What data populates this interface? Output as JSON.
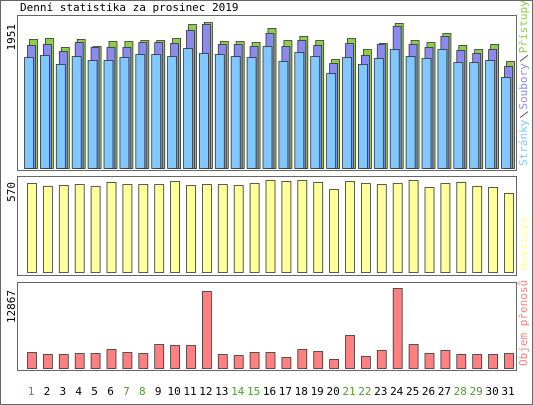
{
  "chart_data": [
    {
      "type": "bar",
      "title": "Denní statistika za prosinec 2019",
      "ylim": [
        0,
        1951
      ],
      "yticks": [
        1951
      ],
      "series": [
        {
          "name": "Přístupy",
          "color": "#8fce4a",
          "values": [
            1724,
            1737,
            1617,
            1724,
            1630,
            1697,
            1697,
            1710,
            1710,
            1737,
            1924,
            1951,
            1697,
            1697,
            1683,
            1871,
            1710,
            1764,
            1710,
            1456,
            1737,
            1590,
            1670,
            1938,
            1710,
            1683,
            1804,
            1644,
            1590,
            1657,
            1430
          ]
        },
        {
          "name": "Soubory",
          "color": "#8a8af0",
          "values": [
            1644,
            1657,
            1563,
            1683,
            1617,
            1617,
            1617,
            1683,
            1683,
            1670,
            1844,
            1924,
            1657,
            1657,
            1630,
            1804,
            1630,
            1710,
            1644,
            1403,
            1670,
            1510,
            1657,
            1898,
            1657,
            1617,
            1764,
            1577,
            1537,
            1590,
            1363
          ]
        },
        {
          "name": "Stránky",
          "color": "#80c8ff",
          "values": [
            1483,
            1510,
            1390,
            1496,
            1443,
            1443,
            1483,
            1523,
            1523,
            1496,
            1603,
            1536,
            1523,
            1496,
            1483,
            1630,
            1430,
            1550,
            1496,
            1269,
            1483,
            1390,
            1470,
            1590,
            1496,
            1470,
            1590,
            1416,
            1416,
            1443,
            1216
          ]
        }
      ]
    },
    {
      "type": "bar",
      "ylim": [
        0,
        570
      ],
      "yticks": [
        570
      ],
      "series": [
        {
          "name": "Návštěvy",
          "color": "#ffff99",
          "values": [
            551,
            533,
            539,
            545,
            533,
            558,
            545,
            545,
            545,
            564,
            539,
            545,
            545,
            539,
            551,
            570,
            564,
            570,
            558,
            514,
            564,
            551,
            545,
            551,
            570,
            527,
            551,
            558,
            533,
            527,
            490
          ]
        }
      ]
    },
    {
      "type": "bar",
      "ylim": [
        0,
        12867
      ],
      "yticks": [
        12867
      ],
      "categories": [
        "1",
        "2",
        "3",
        "4",
        "5",
        "6",
        "7",
        "8",
        "9",
        "10",
        "11",
        "12",
        "13",
        "14",
        "15",
        "16",
        "17",
        "18",
        "19",
        "20",
        "21",
        "22",
        "23",
        "24",
        "25",
        "26",
        "27",
        "28",
        "29",
        "30",
        "31"
      ],
      "category_label_colors": [
        "#4aa02c",
        "#000",
        "#000",
        "#000",
        "#000",
        "#000",
        "#4aa02c",
        "#4aa02c",
        "#000",
        "#000",
        "#000",
        "#000",
        "#000",
        "#4aa02c",
        "#4aa02c",
        "#000",
        "#000",
        "#000",
        "#000",
        "#000",
        "#4aa02c",
        "#4aa02c",
        "#000",
        "#000",
        "#000",
        "#000",
        "#000",
        "#4aa02c",
        "#4aa02c",
        "#000",
        "#000"
      ],
      "series": [
        {
          "name": "Objem přenosů",
          "color": "#ff8080",
          "values": [
            2573,
            2251,
            2251,
            2412,
            2412,
            3055,
            2573,
            2412,
            3859,
            3698,
            3698,
            12384,
            2251,
            2090,
            2573,
            2573,
            1769,
            3055,
            2734,
            1447,
            5306,
            1930,
            2894,
            12867,
            3859,
            2412,
            2894,
            2251,
            2251,
            2251,
            2412
          ]
        }
      ]
    }
  ]
}
